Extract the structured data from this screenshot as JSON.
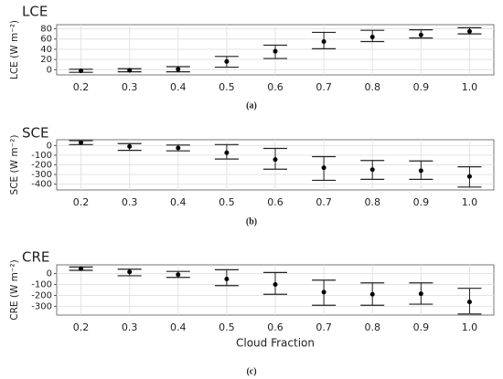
{
  "chart_data": [
    {
      "type": "errorbar",
      "title": "LCE",
      "y_label": "LCE (W m⁻²)",
      "caption": "(a)",
      "categories": [
        "0.2",
        "0.3",
        "0.4",
        "0.5",
        "0.6",
        "0.7",
        "0.8",
        "0.9",
        "1.0"
      ],
      "values": [
        -2,
        -1,
        1,
        16,
        36,
        55,
        64,
        68,
        75
      ],
      "lower": [
        -5,
        -4,
        -4,
        5,
        22,
        41,
        55,
        62,
        70
      ],
      "upper": [
        1,
        2,
        6,
        26,
        48,
        73,
        77,
        78,
        82
      ],
      "ylim": [
        -10,
        88
      ],
      "yticks": [
        0,
        20,
        40,
        60,
        80
      ],
      "grid": true
    },
    {
      "type": "errorbar",
      "title": "SCE",
      "y_label": "SCE (W m⁻²)",
      "caption": "(b)",
      "categories": [
        "0.2",
        "0.3",
        "0.4",
        "0.5",
        "0.6",
        "0.7",
        "0.8",
        "0.9",
        "1.0"
      ],
      "values": [
        30,
        -10,
        -25,
        -75,
        -145,
        -230,
        -250,
        -260,
        -320
      ],
      "lower": [
        10,
        -50,
        -55,
        -140,
        -245,
        -360,
        -350,
        -350,
        -430
      ],
      "upper": [
        50,
        20,
        5,
        10,
        -30,
        -115,
        -155,
        -160,
        -220
      ],
      "ylim": [
        -460,
        60
      ],
      "yticks": [
        0,
        -100,
        -200,
        -300,
        -400
      ],
      "grid": true
    },
    {
      "type": "errorbar",
      "title": "CRE",
      "y_label": "CRE (W m⁻²)",
      "x_label": "Cloud Fraction",
      "caption": "(c)",
      "categories": [
        "0.2",
        "0.3",
        "0.4",
        "0.5",
        "0.6",
        "0.7",
        "0.8",
        "0.9",
        "1.0"
      ],
      "values": [
        45,
        15,
        -10,
        -50,
        -100,
        -170,
        -190,
        -185,
        -260
      ],
      "lower": [
        30,
        -20,
        -35,
        -110,
        -190,
        -290,
        -290,
        -280,
        -370
      ],
      "upper": [
        60,
        40,
        20,
        35,
        10,
        -60,
        -85,
        -85,
        -135
      ],
      "ylim": [
        -380,
        80
      ],
      "yticks": [
        0,
        -100,
        -200,
        -300
      ],
      "grid": true
    }
  ]
}
